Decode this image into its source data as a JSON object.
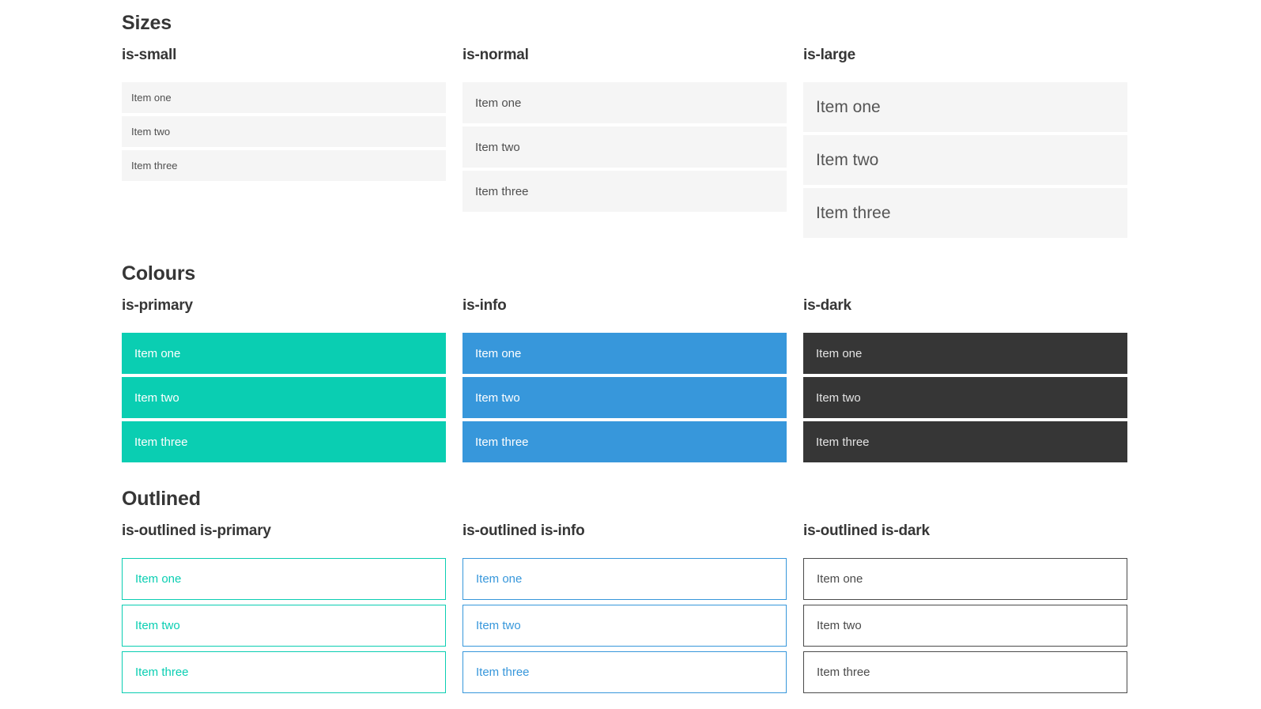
{
  "colors": {
    "primary": "#0aceb2",
    "info": "#3797db",
    "dark": "#363636",
    "item_background": "#f5f5f5",
    "item_text": "#4f4f4f",
    "item_text_large": "#555555",
    "on_primary_text": "#ffffff",
    "on_info_text": "#ffffff",
    "on_dark_text": "#e4e4e4",
    "outlined_dark": "#4a4a4a",
    "heading_text": "#363636"
  },
  "sections": [
    {
      "id": "sizes",
      "title": "Sizes",
      "groups": [
        {
          "heading": "is-small",
          "variant": "size-small",
          "items": [
            "Item one",
            "Item two",
            "Item three"
          ]
        },
        {
          "heading": "is-normal",
          "variant": "size-normal",
          "items": [
            "Item one",
            "Item two",
            "Item three"
          ]
        },
        {
          "heading": "is-large",
          "variant": "size-large",
          "items": [
            "Item one",
            "Item two",
            "Item three"
          ]
        }
      ]
    },
    {
      "id": "colours",
      "title": "Colours",
      "groups": [
        {
          "heading": "is-primary",
          "variant": "color-primary",
          "items": [
            "Item one",
            "Item two",
            "Item three"
          ]
        },
        {
          "heading": "is-info",
          "variant": "color-info",
          "items": [
            "Item one",
            "Item two",
            "Item three"
          ]
        },
        {
          "heading": "is-dark",
          "variant": "color-dark",
          "items": [
            "Item one",
            "Item two",
            "Item three"
          ]
        }
      ]
    },
    {
      "id": "outlined",
      "title": "Outlined",
      "groups": [
        {
          "heading": "is-outlined is-primary",
          "variant": "outlined-primary",
          "items": [
            "Item one",
            "Item two",
            "Item three"
          ]
        },
        {
          "heading": "is-outlined is-info",
          "variant": "outlined-info",
          "items": [
            "Item one",
            "Item two",
            "Item three"
          ]
        },
        {
          "heading": "is-outlined is-dark",
          "variant": "outlined-dark",
          "items": [
            "Item one",
            "Item two",
            "Item three"
          ]
        }
      ]
    }
  ]
}
